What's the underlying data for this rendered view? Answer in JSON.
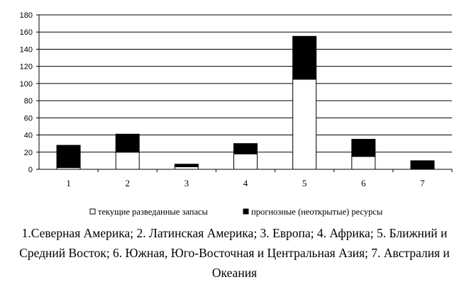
{
  "chart_data": {
    "type": "bar",
    "stacked": true,
    "categories": [
      "1",
      "2",
      "3",
      "4",
      "5",
      "6",
      "7"
    ],
    "series": [
      {
        "name": "текущие разведанные запасы",
        "values": [
          2,
          20,
          3,
          18,
          105,
          15,
          0
        ],
        "color": "#ffffff"
      },
      {
        "name": "прогнозные (неоткрытые) ресурсы",
        "values": [
          26,
          21,
          3,
          12,
          50,
          20,
          10
        ],
        "color": "#000000"
      }
    ],
    "ylim": [
      0,
      180
    ],
    "yticks": [
      0,
      20,
      40,
      60,
      80,
      100,
      120,
      140,
      160,
      180
    ],
    "grid": true,
    "legend_position": "bottom"
  },
  "caption": {
    "line1": "1.Северная Америка; 2. Латинская Америка; 3. Европа; 4. Африка; 5. Ближний и",
    "line2": "Средний Восток; 6. Южная, Юго-Восточная и Центральная Азия; 7. Австралия и",
    "line3": "Океания"
  }
}
